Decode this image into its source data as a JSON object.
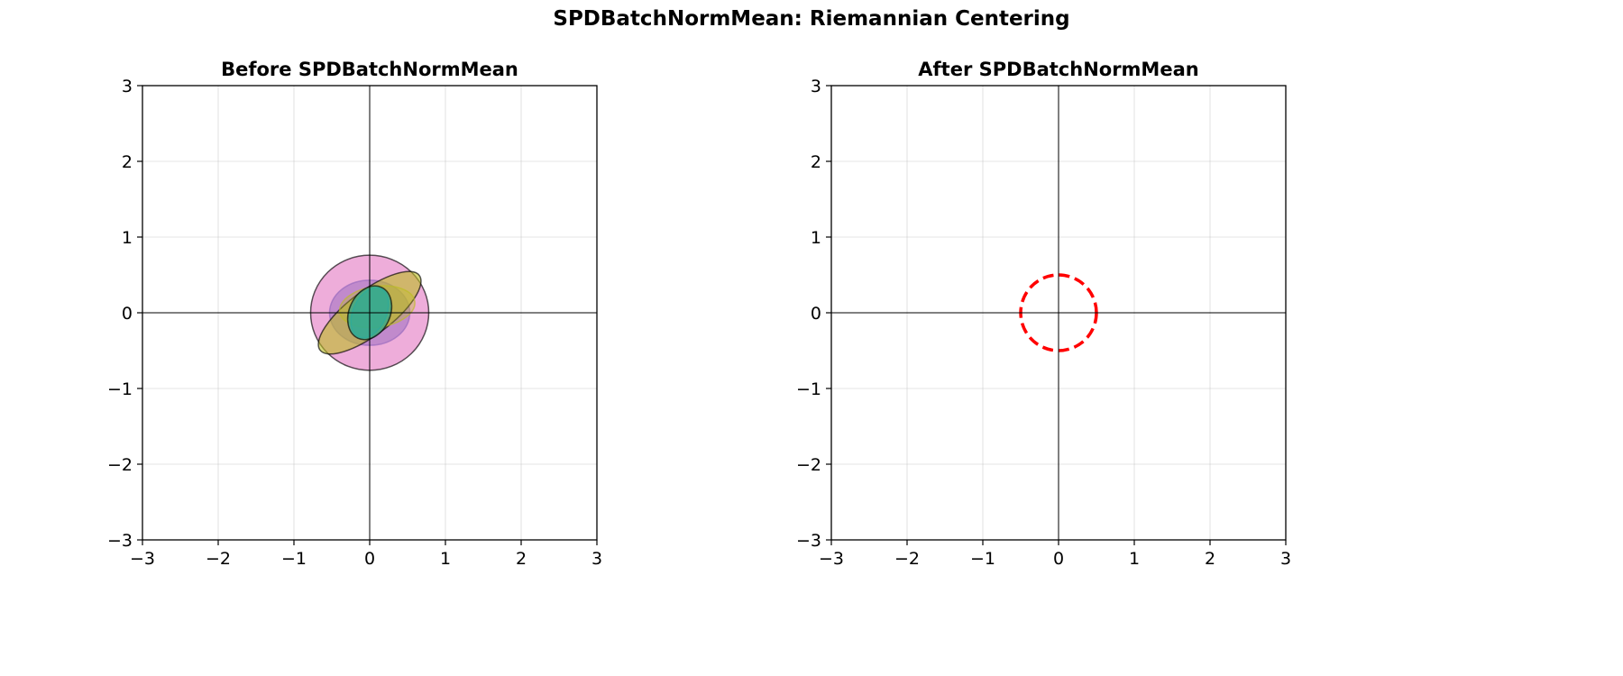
{
  "figure": {
    "title": "SPDBatchNormMean: Riemannian Centering"
  },
  "chart_data": [
    {
      "type": "scatter",
      "title": "Before SPDBatchNormMean",
      "xlim": [
        -3,
        3
      ],
      "ylim": [
        -3,
        3
      ],
      "xticks": [
        "−3",
        "−2",
        "−1",
        "0",
        "1",
        "2",
        "3"
      ],
      "yticks": [
        "−3",
        "−2",
        "−1",
        "0",
        "1",
        "2",
        "3"
      ],
      "tick_values": [
        -3,
        -2,
        -1,
        0,
        1,
        2,
        3
      ],
      "grid": true,
      "axis_lines_at_zero": true,
      "ellipses": [
        {
          "name": "",
          "cx": 0.0,
          "cy": 0.0,
          "rx": 0.78,
          "ry": 0.76,
          "angle_deg": 0,
          "fill": "#e377c2",
          "alpha": 0.6,
          "edge": "#000000"
        },
        {
          "name": "",
          "cx": 0.0,
          "cy": 0.0,
          "rx": 0.53,
          "ry": 0.43,
          "angle_deg": 0,
          "fill": "#9467bd",
          "alpha": 0.5,
          "edge": "#9467bd"
        },
        {
          "name": "",
          "cx": 0.0,
          "cy": 0.0,
          "rx": 0.82,
          "ry": 0.29,
          "angle_deg": 37,
          "fill": "#bcbd22",
          "alpha": 0.6,
          "edge": "#000000"
        },
        {
          "name": "",
          "cx": 0.1,
          "cy": 0.08,
          "rx": 0.5,
          "ry": 0.27,
          "angle_deg": 8,
          "fill": "#bcbd22",
          "alpha": 0.35,
          "edge": "#bcbd22"
        },
        {
          "name": "",
          "cx": 0.0,
          "cy": 0.0,
          "rx": 0.35,
          "ry": 0.22,
          "angle_deg": 65,
          "fill": "#17becf",
          "alpha": 0.45,
          "edge": "#17becf"
        },
        {
          "name": "",
          "cx": 0.0,
          "cy": 0.0,
          "rx": 0.37,
          "ry": 0.27,
          "angle_deg": 65,
          "fill": "#2ca58d",
          "alpha": 0.75,
          "edge": "#000000"
        }
      ]
    },
    {
      "type": "scatter",
      "title": "After SPDBatchNormMean",
      "xlim": [
        -3,
        3
      ],
      "ylim": [
        -3,
        3
      ],
      "xticks": [
        "−3",
        "−2",
        "−1",
        "0",
        "1",
        "2",
        "3"
      ],
      "yticks": [
        "−3",
        "−2",
        "−1",
        "0",
        "1",
        "2",
        "3"
      ],
      "tick_values": [
        -3,
        -2,
        -1,
        0,
        1,
        2,
        3
      ],
      "grid": true,
      "axis_lines_at_zero": true,
      "ellipses": [
        {
          "name": "",
          "cx": 0.0,
          "cy": 0.0,
          "rx": 0.5,
          "ry": 0.5,
          "angle_deg": 0,
          "fill": "none",
          "alpha": 1,
          "edge": "#ff0000",
          "dashed": true
        }
      ]
    }
  ]
}
